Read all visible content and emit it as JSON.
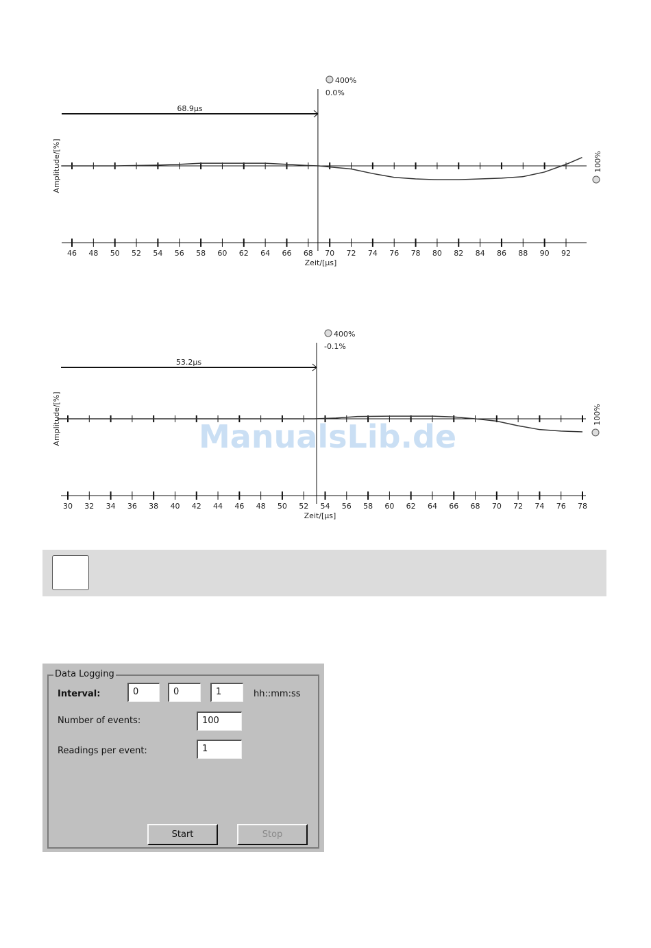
{
  "chart_data": [
    {
      "type": "line",
      "ylabel": "Amplitude/[%]",
      "xlabel": "Zeit/[µs]",
      "xlim": [
        45,
        94
      ],
      "ylim": [
        -100,
        100
      ],
      "xticks": [
        46,
        48,
        50,
        52,
        54,
        56,
        58,
        60,
        62,
        64,
        66,
        68,
        70,
        72,
        74,
        76,
        78,
        80,
        82,
        84,
        86,
        88,
        90,
        92
      ],
      "cursor": {
        "x": 68.9,
        "label": "68.9µs",
        "zoom_label": "400%",
        "value_label": "0.0%"
      },
      "right_zoom_label": "100%",
      "series": [
        {
          "x": [
            45,
            50,
            54,
            56,
            58,
            60,
            64,
            66,
            68,
            69,
            70,
            72,
            74,
            76,
            78,
            80,
            82,
            84,
            86,
            88,
            90,
            92,
            93.5
          ],
          "y": [
            0,
            0,
            1,
            2,
            3.5,
            3.5,
            3.5,
            2,
            0.5,
            0,
            -1.5,
            -4,
            -10,
            -15,
            -17,
            -18,
            -18,
            -17,
            -16,
            -14,
            -8,
            2,
            11
          ]
        }
      ]
    },
    {
      "type": "line",
      "ylabel": "Amplitude/[%]",
      "xlabel": "Zeit/[µs]",
      "xlim": [
        29,
        79
      ],
      "ylim": [
        -100,
        100
      ],
      "xticks": [
        30,
        32,
        34,
        36,
        38,
        40,
        42,
        44,
        46,
        48,
        50,
        52,
        54,
        56,
        58,
        60,
        62,
        64,
        66,
        68,
        70,
        72,
        74,
        76,
        78
      ],
      "cursor": {
        "x": 53.2,
        "label": "53.2µs",
        "zoom_label": "400%",
        "value_label": "-0.1%"
      },
      "right_zoom_label": "100%",
      "series": [
        {
          "x": [
            29,
            40,
            50,
            53,
            55,
            57,
            60,
            64,
            66,
            68,
            70,
            72,
            74,
            76,
            78
          ],
          "y": [
            0,
            0,
            0,
            0,
            1,
            3,
            3.5,
            3.5,
            2.5,
            0,
            -3,
            -9,
            -14,
            -16,
            -17
          ]
        }
      ]
    }
  ],
  "watermark": "ManualsLib.de",
  "dialog": {
    "group_title": "Data Logging",
    "interval_label": "Interval:",
    "interval": [
      "0",
      "0",
      "1"
    ],
    "interval_unit": "hh::mm:ss",
    "events_label": "Number of events:",
    "events": "100",
    "readings_label": "Readings per event:",
    "readings": "1",
    "start": "Start",
    "stop": "Stop"
  }
}
